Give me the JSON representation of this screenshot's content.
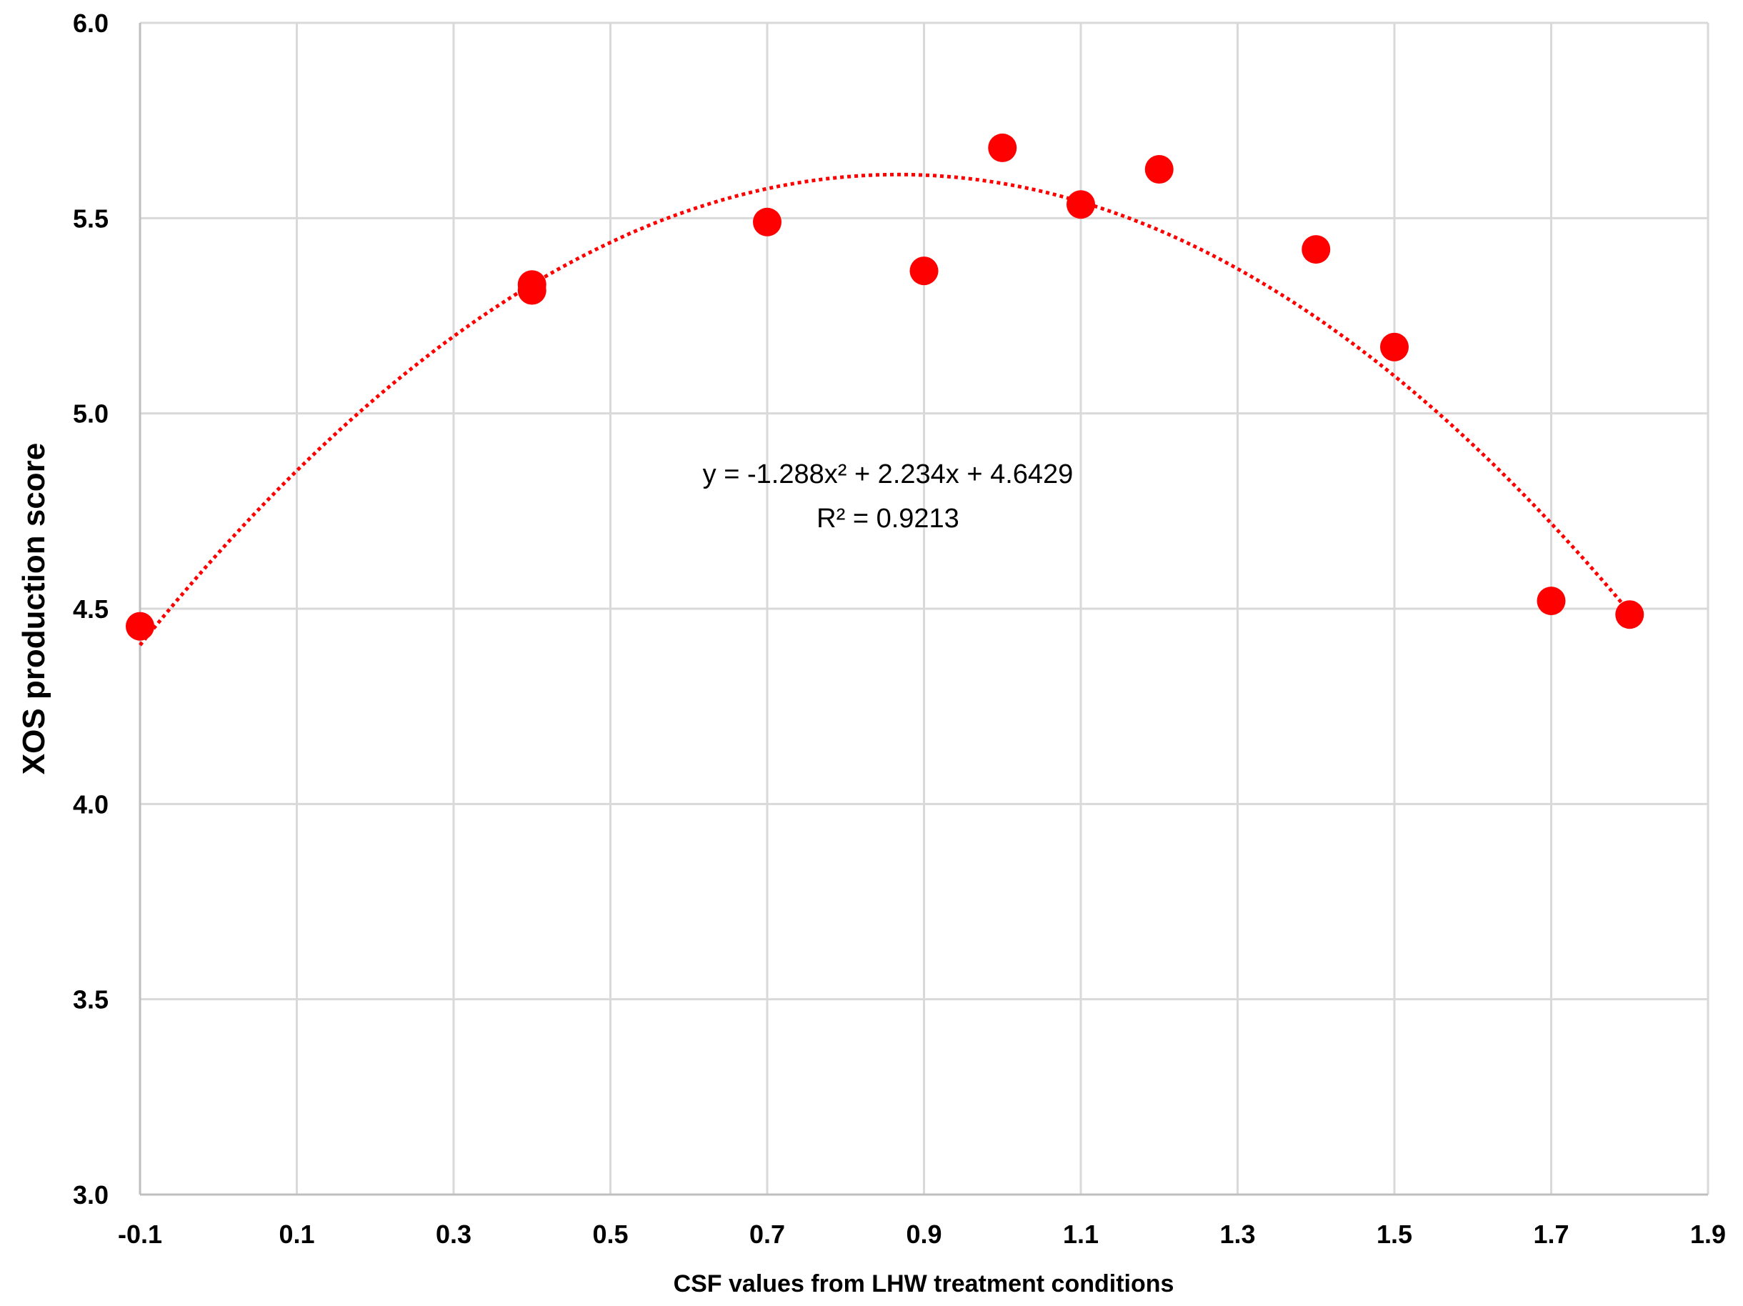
{
  "chart_data": {
    "type": "scatter",
    "title": "",
    "xlabel": "CSF values from LHW treatment conditions",
    "ylabel": "XOS production score",
    "xlim": [
      -0.1,
      1.9
    ],
    "ylim": [
      3.0,
      6.0
    ],
    "x_ticks": [
      "-0.1",
      "0.1",
      "0.3",
      "0.5",
      "0.7",
      "0.9",
      "1.1",
      "1.3",
      "1.5",
      "1.7",
      "1.9"
    ],
    "x_tick_values": [
      -0.1,
      0.1,
      0.3,
      0.5,
      0.7,
      0.9,
      1.1,
      1.3,
      1.5,
      1.7,
      1.9
    ],
    "y_ticks": [
      "3.0",
      "3.5",
      "4.0",
      "4.5",
      "5.0",
      "5.5",
      "6.0"
    ],
    "y_tick_values": [
      3.0,
      3.5,
      4.0,
      4.5,
      5.0,
      5.5,
      6.0
    ],
    "grid": true,
    "legend": "none",
    "series": [
      {
        "color": "#FF0000",
        "points": [
          {
            "x": -0.1,
            "y": 4.455
          },
          {
            "x": 0.4,
            "y": 5.33
          },
          {
            "x": 0.4,
            "y": 5.315
          },
          {
            "x": 0.7,
            "y": 5.49
          },
          {
            "x": 0.9,
            "y": 5.365
          },
          {
            "x": 1.0,
            "y": 5.68
          },
          {
            "x": 1.1,
            "y": 5.535
          },
          {
            "x": 1.2,
            "y": 5.625
          },
          {
            "x": 1.4,
            "y": 5.42
          },
          {
            "x": 1.5,
            "y": 5.17
          },
          {
            "x": 1.7,
            "y": 4.52
          },
          {
            "x": 1.8,
            "y": 4.485
          }
        ]
      }
    ],
    "trendline": {
      "type": "polynomial",
      "order": 2,
      "coefficients": [
        -1.288,
        2.234,
        4.6429
      ],
      "x_range": [
        -0.1,
        1.8
      ],
      "color": "#FF0000",
      "style": "dotted",
      "equation_text": "y = -1.288x² + 2.234x + 4.6429",
      "r2_text": "R² = 0.9213"
    }
  }
}
